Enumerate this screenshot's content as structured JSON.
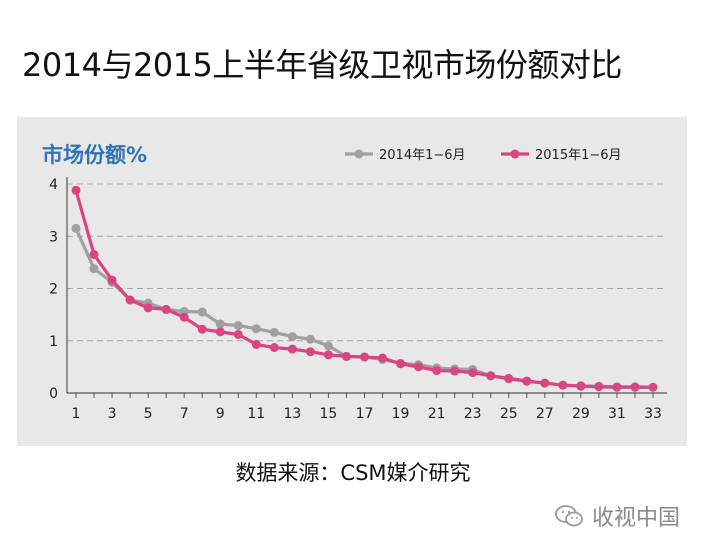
{
  "page": {
    "title": "2014与2015上半年省级卫视市场份额对比",
    "source": "数据来源：CSM媒介研究",
    "watermark": "收视中国"
  },
  "colors": {
    "panel_bg": "#e8e8e8",
    "series_2014": "#a0a0a0",
    "series_2015": "#d9467e",
    "ylabel": "#2e74b5",
    "grid": "#a6a6a6"
  },
  "chart_data": {
    "type": "line",
    "ylabel": "市场份额%",
    "ylim": [
      0,
      4
    ],
    "yticks": [
      0,
      1,
      2,
      3,
      4
    ],
    "grid": true,
    "grid_style": "dashed horizontal",
    "legend_position": "top-right",
    "x": [
      1,
      2,
      3,
      4,
      5,
      6,
      7,
      8,
      9,
      10,
      11,
      12,
      13,
      14,
      15,
      16,
      17,
      18,
      19,
      20,
      21,
      22,
      23,
      24,
      25,
      26,
      27,
      28,
      29,
      30,
      31,
      32,
      33
    ],
    "xticks": [
      1,
      3,
      5,
      7,
      9,
      11,
      13,
      15,
      17,
      19,
      21,
      23,
      25,
      27,
      29,
      31,
      33
    ],
    "series": [
      {
        "name": "2014年1−6月",
        "color": "#a0a0a0",
        "values": [
          3.15,
          2.38,
          2.12,
          1.78,
          1.72,
          1.6,
          1.56,
          1.55,
          1.32,
          1.29,
          1.23,
          1.16,
          1.08,
          1.03,
          0.9,
          0.7,
          0.69,
          0.64,
          0.57,
          0.54,
          0.48,
          0.46,
          0.45,
          0.33,
          0.27,
          0.22,
          0.19,
          0.15,
          0.14,
          0.13,
          0.12,
          0.12,
          0.11
        ]
      },
      {
        "name": "2015年1−6月",
        "color": "#d9467e",
        "values": [
          3.88,
          2.65,
          2.16,
          1.78,
          1.63,
          1.6,
          1.45,
          1.22,
          1.17,
          1.12,
          0.93,
          0.87,
          0.84,
          0.79,
          0.73,
          0.7,
          0.69,
          0.67,
          0.56,
          0.5,
          0.43,
          0.42,
          0.39,
          0.33,
          0.28,
          0.23,
          0.19,
          0.15,
          0.13,
          0.12,
          0.11,
          0.11,
          0.11
        ]
      }
    ]
  }
}
